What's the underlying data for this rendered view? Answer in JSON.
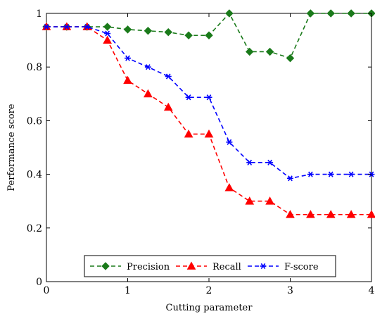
{
  "chart_data": {
    "type": "line",
    "title": "",
    "xlabel": "Cutting parameter",
    "ylabel": "Performance score",
    "xlim": [
      0,
      4
    ],
    "ylim": [
      0,
      1
    ],
    "xticks": [
      "0",
      "1",
      "2",
      "3",
      "4"
    ],
    "yticks": [
      "0",
      "0.2",
      "0.4",
      "0.6",
      "0.8",
      "1"
    ],
    "grid": false,
    "legend_position": "bottom-center",
    "x": [
      0,
      0.25,
      0.5,
      0.75,
      1,
      1.25,
      1.5,
      1.75,
      2,
      2.25,
      2.5,
      2.75,
      3,
      3.25,
      3.5,
      3.75,
      4
    ],
    "series": [
      {
        "name": "Precision",
        "color": "#1a7a1a",
        "marker": "diamond",
        "values": [
          0.95,
          0.95,
          0.95,
          0.95,
          0.94,
          0.935,
          0.93,
          0.918,
          0.918,
          1.0,
          0.857,
          0.857,
          0.833,
          1.0,
          1.0,
          1.0,
          1.0
        ]
      },
      {
        "name": "Recall",
        "color": "#ff0000",
        "marker": "triangle",
        "values": [
          0.95,
          0.95,
          0.95,
          0.9,
          0.75,
          0.7,
          0.65,
          0.55,
          0.55,
          0.35,
          0.3,
          0.3,
          0.25,
          0.25,
          0.25,
          0.25,
          0.25
        ]
      },
      {
        "name": "F-score",
        "color": "#0000ff",
        "marker": "star",
        "values": [
          0.95,
          0.95,
          0.95,
          0.925,
          0.833,
          0.8,
          0.765,
          0.687,
          0.687,
          0.52,
          0.444,
          0.444,
          0.385,
          0.4,
          0.4,
          0.4,
          0.4
        ]
      }
    ]
  }
}
